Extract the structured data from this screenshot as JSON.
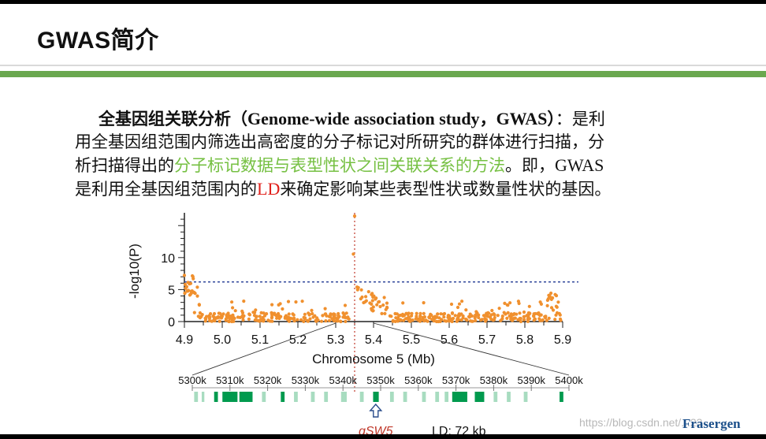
{
  "slide": {
    "title": "GWAS简介"
  },
  "intro": {
    "line1_term": "全基因组关联分析",
    "line1_paren_open": "（",
    "line1_english": "Genome-wide association study",
    "line1_sep": "，",
    "line1_abbr": "GWAS",
    "line1_paren_close": "）",
    "line1_tail": "：是利",
    "line2": "用全基因组范围内筛选出高密度的分子标记对所研究的群体进行扫描，分",
    "line3_head": "析扫描得出的",
    "line3_green": "分子标记数据与表型性状之间关联关系的方法",
    "line3_tail": "。即，",
    "line3_abbr": "GWAS",
    "line4_head": "是利用全基因组范围内的",
    "line4_red": "LD",
    "line4_tail": "来确定影响某些表型性状或数量性状的基因。"
  },
  "chart_data": {
    "type": "scatter",
    "xlabel": "Chromosome 5 (Mb)",
    "ylabel": "-log10(P)",
    "xlim": [
      4.9,
      5.9
    ],
    "ylim": [
      0,
      17
    ],
    "x_ticks": [
      "4.9",
      "5.0",
      "5.1",
      "5.2",
      "5.3",
      "5.4",
      "5.5",
      "5.6",
      "5.7",
      "5.8",
      "5.9"
    ],
    "y_ticks": [
      "0",
      "5",
      "10"
    ],
    "threshold": 6.2,
    "peak_position": 5.35,
    "peak_value": 16.5,
    "point_color": "#f0902e",
    "threshold_color": "#3a4fa0",
    "peak_line_color": "#c0392b",
    "zoom": {
      "labels": [
        "5300k",
        "5310k",
        "5320k",
        "5330k",
        "5340k",
        "5350k",
        "5360k",
        "5370k",
        "5380k",
        "5390k",
        "5400k"
      ],
      "genes_dark": [
        [
          5305.8,
          5306.8
        ],
        [
          5308.0,
          5312.0
        ],
        [
          5312.5,
          5316.0
        ],
        [
          5323.5,
          5324.5
        ],
        [
          5348.0,
          5349.5
        ],
        [
          5369.0,
          5373.0
        ],
        [
          5375.0,
          5377.5
        ],
        [
          5397.5,
          5398.5
        ]
      ],
      "genes_light": [
        [
          5300.5,
          5301.5
        ],
        [
          5302.5,
          5303.2
        ],
        [
          5318.5,
          5319.5
        ],
        [
          5327.0,
          5328.0
        ],
        [
          5331.5,
          5332.5
        ],
        [
          5335.0,
          5336.0
        ],
        [
          5339.5,
          5341.0
        ],
        [
          5344.5,
          5345.5
        ],
        [
          5352.5,
          5353.5
        ],
        [
          5356.0,
          5357.0
        ],
        [
          5361.0,
          5362.0
        ],
        [
          5364.5,
          5365.5
        ],
        [
          5367.0,
          5368.0
        ],
        [
          5380.0,
          5381.0
        ],
        [
          5383.5,
          5384.5
        ],
        [
          5388.0,
          5389.0
        ]
      ],
      "gene_color": "#009a4e",
      "gene_light_color": "#a8dcc0",
      "candidate_gene": "qSW5",
      "ld_label": "LD: 72 kb"
    }
  },
  "footer": {
    "watermark": "https://blog.csdn.net/...23",
    "logo": "Frasergen"
  }
}
